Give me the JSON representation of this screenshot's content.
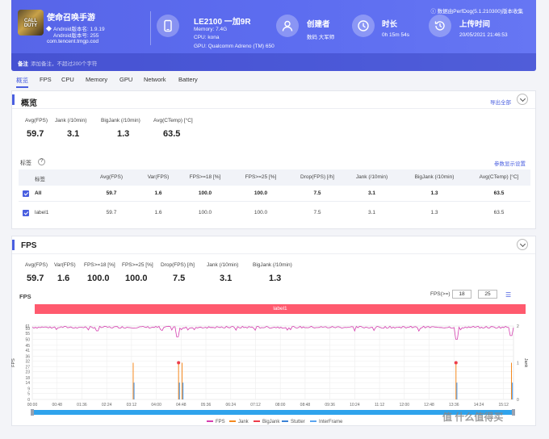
{
  "header": {
    "app_name": "使命召唤手游",
    "icon_text": "CALL DUTY",
    "android_version": "Android版本名: 1.9.19",
    "android_build": "Android版本号: 255",
    "package": "com.tencent.tmgp.cod",
    "device_name": "LE2100 一加9R",
    "memory": "Memory: 7.4G",
    "cpu": "CPU: kona",
    "gpu": "GPU: Qualcomm Adreno (TM) 650",
    "creator_label": "创建者",
    "creator_value": "数码 大军师",
    "duration_label": "时长",
    "duration_value": "0h 15m 54s",
    "upload_label": "上传时间",
    "upload_value": "20/05/2021 21:46:53",
    "source": "数据由PerfDog(5.1.210300)版本收集",
    "note_label": "备注",
    "note_placeholder": "添加备注，不超过200个字符",
    "accent": "#5866ec"
  },
  "tabs": [
    "概览",
    "FPS",
    "CPU",
    "Memory",
    "GPU",
    "Network",
    "Battery"
  ],
  "overview": {
    "title": "概览",
    "export": "导出全部",
    "metrics": [
      {
        "label": "Avg(FPS)",
        "value": "59.7"
      },
      {
        "label": "Jank (/10min)",
        "value": "3.1"
      },
      {
        "label": "BigJank (/10min)",
        "value": "1.3"
      },
      {
        "label": "Avg(CTemp) [°C]",
        "value": "63.5"
      }
    ],
    "tags_label": "标签",
    "settings_link": "参数显示设置",
    "table": {
      "headers": [
        "标签",
        "Avg(FPS)",
        "Var(FPS)",
        "FPS>=18 [%]",
        "FPS>=25 [%]",
        "Drop(FPS) [/h]",
        "Jank (/10min)",
        "BigJank (/10min)",
        "Avg(CTemp) [°C]"
      ],
      "rows": [
        [
          "All",
          "59.7",
          "1.6",
          "100.0",
          "100.0",
          "7.5",
          "3.1",
          "1.3",
          "63.5"
        ],
        [
          "label1",
          "59.7",
          "1.6",
          "100.0",
          "100.0",
          "7.5",
          "3.1",
          "1.3",
          "63.5"
        ]
      ]
    }
  },
  "fps": {
    "title": "FPS",
    "metrics": [
      {
        "label": "Avg(FPS)",
        "value": "59.7"
      },
      {
        "label": "Var(FPS)",
        "value": "1.6"
      },
      {
        "label": "FPS>=18 [%]",
        "value": "100.0"
      },
      {
        "label": "FPS>=25 [%]",
        "value": "100.0"
      },
      {
        "label": "Drop(FPS) [/h]",
        "value": "7.5"
      },
      {
        "label": "Jank (/10min)",
        "value": "3.1"
      },
      {
        "label": "BigJank (/10min)",
        "value": "1.3"
      }
    ],
    "chart_label": "FPS",
    "filter_label": "FPS(>=)",
    "filter_a": "18",
    "filter_b": "25",
    "label_bar": "label1"
  },
  "chart_data": {
    "type": "line",
    "xlabel": "",
    "ylabel": "FPS",
    "y2label": "Jank",
    "x_ticks": [
      "00:00",
      "00:48",
      "01:36",
      "02:24",
      "03:12",
      "04:00",
      "04:48",
      "05:36",
      "06:24",
      "07:12",
      "08:00",
      "08:48",
      "09:36",
      "10:24",
      "11:12",
      "12:00",
      "12:48",
      "13:36",
      "14:24",
      "15:12"
    ],
    "y_ticks": [
      0,
      5,
      9,
      14,
      18,
      23,
      27,
      32,
      36,
      41,
      45,
      50,
      55,
      59,
      61
    ],
    "y2_ticks": [
      0,
      1,
      2
    ],
    "ylim": [
      0,
      61
    ],
    "y2lim": [
      0,
      2
    ],
    "duration_s": 954,
    "fps_baseline": 60,
    "jank_events_s": [
      200,
      290,
      297,
      840,
      950
    ],
    "bigjank_events_s": [
      290,
      840
    ],
    "fps_dips": [
      [
        130,
        57
      ],
      [
        288,
        52
      ],
      [
        840,
        50
      ],
      [
        950,
        53
      ]
    ],
    "series": [
      {
        "name": "FPS",
        "color": "#d63fb0"
      },
      {
        "name": "Jank",
        "color": "#f5891f"
      },
      {
        "name": "BigJank",
        "color": "#ee3d4a"
      },
      {
        "name": "Stutter",
        "color": "#3b82d6"
      },
      {
        "name": "InterFrame",
        "color": "#5aa5f0"
      }
    ]
  },
  "watermark": "值 什么值得买"
}
